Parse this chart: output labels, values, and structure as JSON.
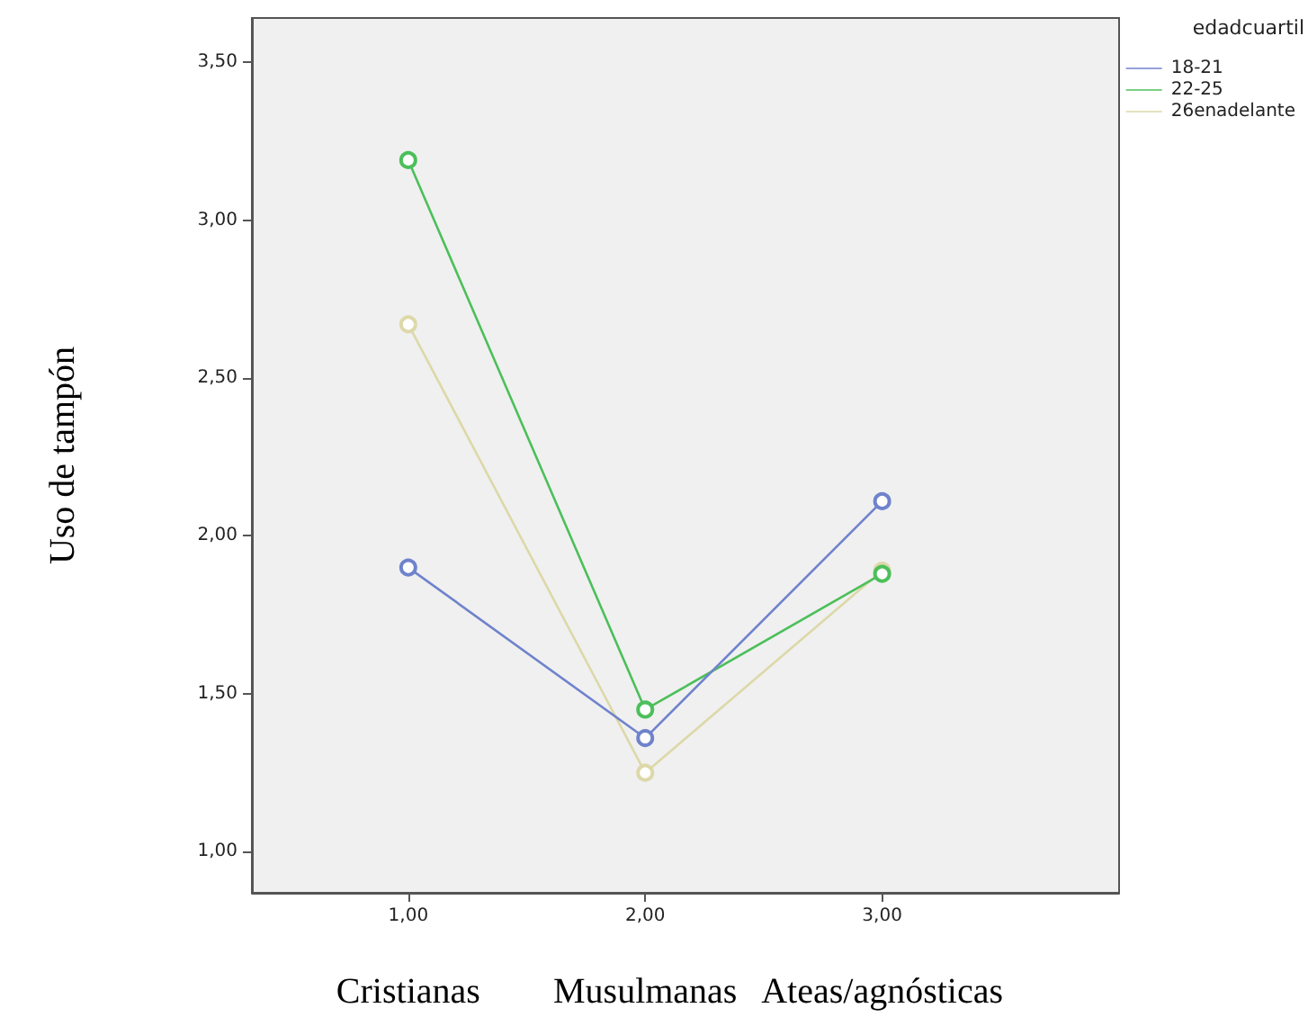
{
  "chart_data": {
    "type": "line",
    "ylabel": "Uso de tampón",
    "legend_title": "edadcuartil",
    "legend": "top right",
    "marker": "circle",
    "line_style": "solid",
    "grid": false,
    "x": [
      1,
      2,
      3
    ],
    "xlim": [
      0.34,
      4.0
    ],
    "xticks": [
      {
        "value": 1,
        "label": "1,00"
      },
      {
        "value": 2,
        "label": "2,00"
      },
      {
        "value": 3,
        "label": "3,00"
      }
    ],
    "ylim": [
      0.87,
      3.64
    ],
    "yticks": [
      {
        "value": 1,
        "label": "1,00"
      },
      {
        "value": 1.5,
        "label": "1,50"
      },
      {
        "value": 2,
        "label": "2,00"
      },
      {
        "value": 2.5,
        "label": "2,50"
      },
      {
        "value": 3,
        "label": "3,00"
      },
      {
        "value": 3.5,
        "label": "3,50"
      }
    ],
    "series": [
      {
        "name": "18-21",
        "color": "#6f83cc",
        "values": [
          1.9,
          1.36,
          2.11
        ]
      },
      {
        "name": "22-25",
        "color": "#4cbf5a",
        "values": [
          3.19,
          1.45,
          1.88
        ]
      },
      {
        "name": "26enadelante",
        "color": "#ddd8a8",
        "values": [
          2.67,
          1.25,
          1.89
        ]
      }
    ],
    "annotations": [
      "Cristianas",
      "Musulmanas",
      "Ateas/agnósticas"
    ]
  }
}
